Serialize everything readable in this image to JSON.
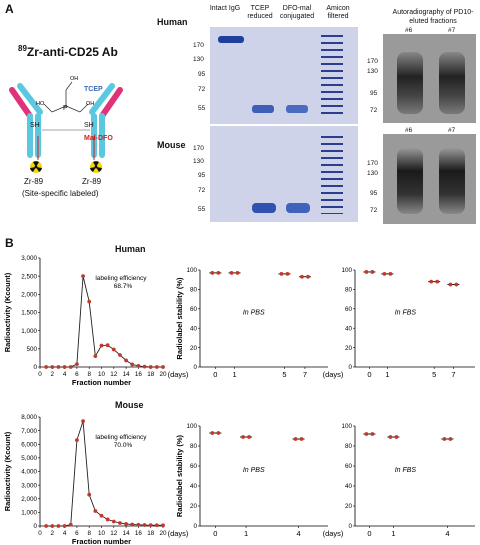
{
  "panelA": {
    "letter": "A",
    "title_sup": "89",
    "title_rest": "Zr-anti-CD25 Ab",
    "tcep": "TCEP",
    "sh_left": "SH",
    "sh_right": "SH",
    "mal_dfo": "Mal-DFO",
    "zr_left": "Zr-89",
    "zr_right": "Zr-89",
    "site_label": "(Site-specific labeled)",
    "gel_row_labels": [
      "Human",
      "Mouse"
    ],
    "lanes": [
      "Intact IgG",
      "TCEP reduced",
      "DFO-mal conjugated",
      "Amicon filtered"
    ],
    "human_mw": [
      "170",
      "130",
      "95",
      "72",
      "55"
    ],
    "mouse_mw": [
      "170",
      "130",
      "95",
      "72",
      "55"
    ],
    "autorad_title": "Autoradiography of PD10-eluted fractions",
    "autorad_fractions": [
      "#6",
      "#7"
    ],
    "autorad_mw_top": [
      "170",
      "130",
      "95",
      "72"
    ],
    "autorad_mw_bottom": [
      "170",
      "130",
      "95",
      "72"
    ]
  },
  "panelB": {
    "letter": "B",
    "human_label": "Human",
    "mouse_label": "Mouse",
    "elution_ylabel": "Radioactivity (Kcount)",
    "elution_xlabel": "Fraction number",
    "stability_ylabel": "Radiolabel stability (%)",
    "days_label": "(days)",
    "pbs_label": "In PBS",
    "fbs_label": "In FBS",
    "human_eff": [
      "labeling efficiency",
      "68.7%"
    ],
    "mouse_eff": [
      "labeling efficiency",
      "70.0%"
    ]
  },
  "chart_data": [
    {
      "type": "line",
      "id": "human-elution",
      "x": [
        1,
        2,
        3,
        4,
        5,
        6,
        7,
        8,
        9,
        10,
        11,
        12,
        13,
        14,
        15,
        16,
        17,
        18,
        19,
        20
      ],
      "values": [
        0,
        0,
        0,
        0,
        0,
        80,
        2500,
        1800,
        300,
        590,
        600,
        480,
        330,
        180,
        70,
        30,
        10,
        0,
        0,
        0
      ],
      "ylim": [
        0,
        3000
      ],
      "yticks": [
        0,
        500,
        1000,
        1500,
        2000,
        2500,
        3000
      ],
      "xticks": [
        0,
        2,
        4,
        6,
        8,
        10,
        12,
        14,
        16,
        18,
        20
      ]
    },
    {
      "type": "line",
      "id": "mouse-elution",
      "x": [
        1,
        2,
        3,
        4,
        5,
        6,
        7,
        8,
        9,
        10,
        11,
        12,
        13,
        14,
        15,
        16,
        17,
        18,
        19,
        20
      ],
      "values": [
        0,
        0,
        0,
        0,
        100,
        6300,
        7700,
        2300,
        1100,
        750,
        480,
        330,
        220,
        150,
        110,
        90,
        70,
        60,
        55,
        50
      ],
      "ylim": [
        0,
        8000
      ],
      "yticks": [
        0,
        1000,
        2000,
        3000,
        4000,
        5000,
        6000,
        7000,
        8000
      ],
      "xticks": [
        0,
        2,
        4,
        6,
        8,
        10,
        12,
        14,
        16,
        18,
        20
      ]
    },
    {
      "type": "scatter",
      "id": "human-pbs",
      "x": [
        0,
        1,
        5,
        7
      ],
      "values": [
        97,
        97,
        96,
        93
      ],
      "ylim": [
        0,
        100
      ],
      "yticks": [
        0,
        20,
        40,
        60,
        80,
        100
      ],
      "xticks": [
        0,
        1,
        5,
        7
      ]
    },
    {
      "type": "scatter",
      "id": "human-fbs",
      "x": [
        0,
        1,
        5,
        7
      ],
      "values": [
        98,
        96,
        88,
        85
      ],
      "ylim": [
        0,
        100
      ],
      "yticks": [
        0,
        20,
        40,
        60,
        80,
        100
      ],
      "xticks": [
        0,
        1,
        5,
        7
      ]
    },
    {
      "type": "scatter",
      "id": "mouse-pbs",
      "x": [
        0,
        1,
        4
      ],
      "values": [
        93,
        89,
        87
      ],
      "ylim": [
        0,
        100
      ],
      "yticks": [
        0,
        20,
        40,
        60,
        80,
        100
      ],
      "xticks": [
        0,
        1,
        4
      ]
    },
    {
      "type": "scatter",
      "id": "mouse-fbs",
      "x": [
        0,
        1,
        4
      ],
      "values": [
        92,
        89,
        87
      ],
      "ylim": [
        0,
        100
      ],
      "yticks": [
        0,
        20,
        40,
        60,
        80,
        100
      ],
      "xticks": [
        0,
        1,
        4
      ]
    }
  ]
}
